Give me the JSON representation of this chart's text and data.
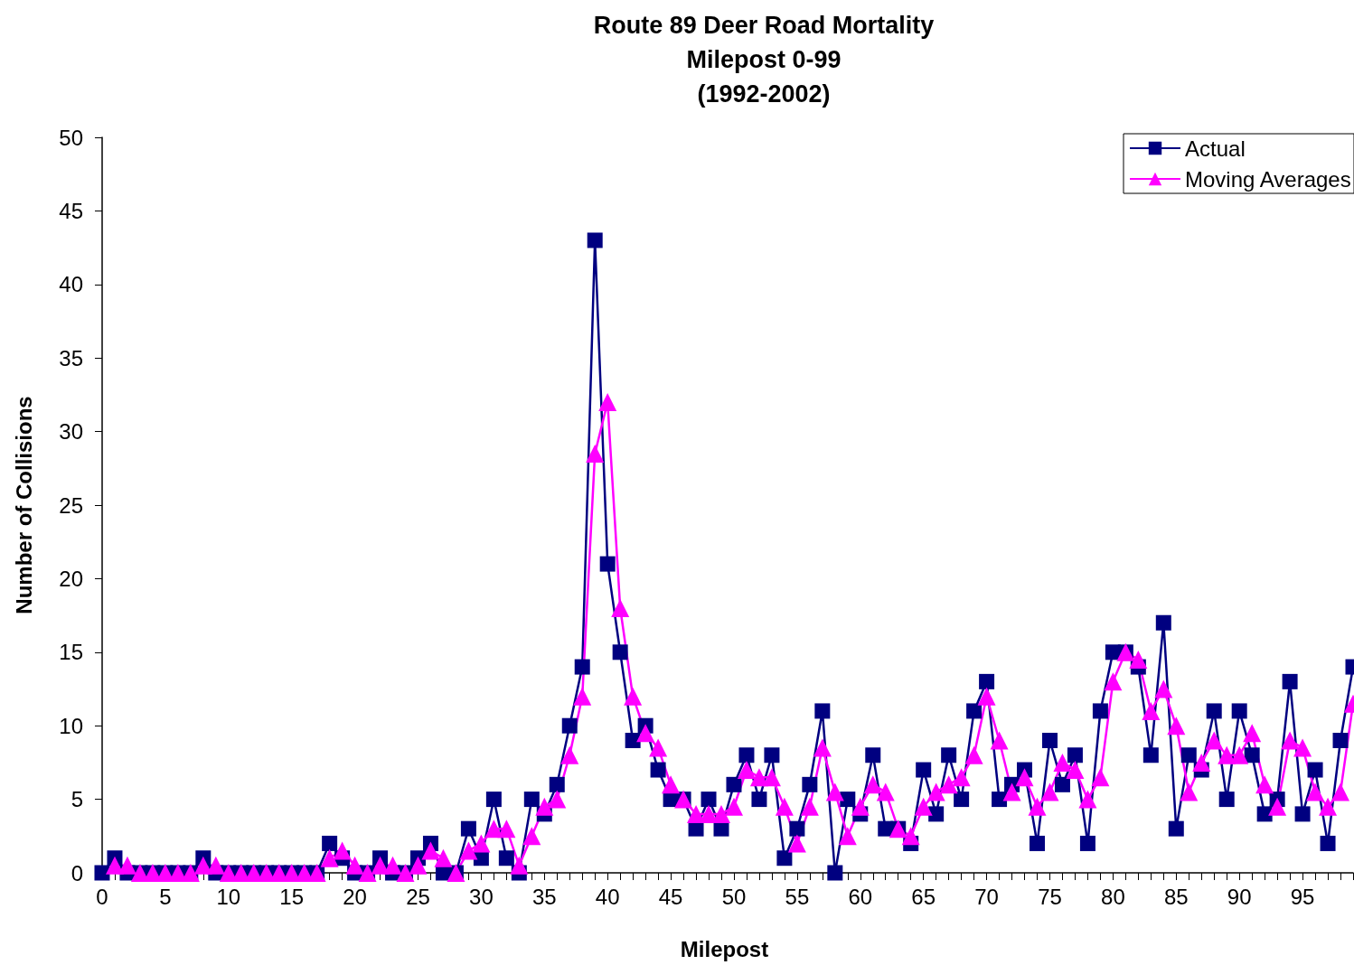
{
  "chart_data": {
    "type": "line",
    "title": "Route 89 Deer Road Mortality\nMilepost 0-99\n(1992-2002)",
    "xlabel": "Milepost",
    "ylabel": "Number of Collisions",
    "x": [
      0,
      1,
      2,
      3,
      4,
      5,
      6,
      7,
      8,
      9,
      10,
      11,
      12,
      13,
      14,
      15,
      16,
      17,
      18,
      19,
      20,
      21,
      22,
      23,
      24,
      25,
      26,
      27,
      28,
      29,
      30,
      31,
      32,
      33,
      34,
      35,
      36,
      37,
      38,
      39,
      40,
      41,
      42,
      43,
      44,
      45,
      46,
      47,
      48,
      49,
      50,
      51,
      52,
      53,
      54,
      55,
      56,
      57,
      58,
      59,
      60,
      61,
      62,
      63,
      64,
      65,
      66,
      67,
      68,
      69,
      70,
      71,
      72,
      73,
      74,
      75,
      76,
      77,
      78,
      79,
      80,
      81,
      82,
      83,
      84,
      85,
      86,
      87,
      88,
      89,
      90,
      91,
      92,
      93,
      94,
      95,
      96,
      97,
      98,
      99
    ],
    "series": [
      {
        "name": "Actual",
        "color": "#000080",
        "marker": "square",
        "values": [
          0,
          1,
          0,
          0,
          0,
          0,
          0,
          0,
          1,
          0,
          0,
          0,
          0,
          0,
          0,
          0,
          0,
          0,
          2,
          1,
          0,
          0,
          1,
          0,
          0,
          1,
          2,
          0,
          0,
          3,
          1,
          5,
          1,
          0,
          5,
          4,
          6,
          10,
          14,
          43,
          21,
          15,
          9,
          10,
          7,
          5,
          5,
          3,
          5,
          3,
          6,
          8,
          5,
          8,
          1,
          3,
          6,
          11,
          0,
          5,
          4,
          8,
          3,
          3,
          2,
          7,
          4,
          8,
          5,
          11,
          13,
          5,
          6,
          7,
          2,
          9,
          6,
          8,
          2,
          11,
          15,
          15,
          14,
          8,
          17,
          3,
          8,
          7,
          11,
          5,
          11,
          8,
          4,
          5,
          13,
          4,
          7,
          2,
          9,
          14
        ]
      },
      {
        "name": "Moving Averages",
        "color": "#ff00ff",
        "marker": "triangle",
        "x": [
          1,
          2,
          3,
          4,
          5,
          6,
          7,
          8,
          9,
          10,
          11,
          12,
          13,
          14,
          15,
          16,
          17,
          18,
          19,
          20,
          21,
          22,
          23,
          24,
          25,
          26,
          27,
          28,
          29,
          30,
          31,
          32,
          33,
          34,
          35,
          36,
          37,
          38,
          39,
          40,
          41,
          42,
          43,
          44,
          45,
          46,
          47,
          48,
          49,
          50,
          51,
          52,
          53,
          54,
          55,
          56,
          57,
          58,
          59,
          60,
          61,
          62,
          63,
          64,
          65,
          66,
          67,
          68,
          69,
          70,
          71,
          72,
          73,
          74,
          75,
          76,
          77,
          78,
          79,
          80,
          81,
          82,
          83,
          84,
          85,
          86,
          87,
          88,
          89,
          90,
          91,
          92,
          93,
          94,
          95,
          96,
          97,
          98,
          99
        ],
        "values": [
          0.5,
          0.5,
          0,
          0,
          0,
          0,
          0,
          0.5,
          0.5,
          0,
          0,
          0,
          0,
          0,
          0,
          0,
          0,
          1,
          1.5,
          0.5,
          0,
          0.5,
          0.5,
          0,
          0.5,
          1.5,
          1,
          0,
          1.5,
          2,
          3,
          3,
          0.5,
          2.5,
          4.5,
          5,
          8,
          12,
          28.5,
          32,
          18,
          12,
          9.5,
          8.5,
          6,
          5,
          4,
          4,
          4,
          4.5,
          7,
          6.5,
          6.5,
          4.5,
          2,
          4.5,
          8.5,
          5.5,
          2.5,
          4.5,
          6,
          5.5,
          3,
          2.5,
          4.5,
          5.5,
          6,
          6.5,
          8,
          12,
          9,
          5.5,
          6.5,
          4.5,
          5.5,
          7.5,
          7,
          5,
          6.5,
          13,
          15,
          14.5,
          11,
          12.5,
          10,
          5.5,
          7.5,
          9,
          8,
          8,
          9.5,
          6,
          4.5,
          9,
          8.5,
          5.5,
          4.5,
          5.5,
          11.5
        ]
      }
    ],
    "xlim": [
      -0.5,
      99
    ],
    "xticks": [
      0,
      {
        "value": 1,
        "label": null
      },
      {
        "value": 2,
        "label": null
      },
      {
        "value": 3,
        "label": null
      },
      {
        "value": 4,
        "label": null
      },
      5,
      {
        "value": 6,
        "label": null
      },
      {
        "value": 7,
        "label": null
      },
      {
        "value": 8,
        "label": null
      },
      {
        "value": 9,
        "label": null
      },
      10,
      {
        "value": 11,
        "label": null
      },
      {
        "value": 12,
        "label": null
      },
      {
        "value": 13,
        "label": null
      },
      {
        "value": 14,
        "label": null
      },
      15,
      {
        "value": 16,
        "label": null
      },
      {
        "value": 17,
        "label": null
      },
      {
        "value": 18,
        "label": null
      },
      {
        "value": 19,
        "label": null
      },
      20,
      {
        "value": 21,
        "label": null
      },
      {
        "value": 22,
        "label": null
      },
      {
        "value": 23,
        "label": null
      },
      {
        "value": 24,
        "label": null
      },
      25,
      {
        "value": 26,
        "label": null
      },
      {
        "value": 27,
        "label": null
      },
      {
        "value": 28,
        "label": null
      },
      {
        "value": 29,
        "label": null
      },
      30,
      {
        "value": 31,
        "label": null
      },
      {
        "value": 32,
        "label": null
      },
      {
        "value": 33,
        "label": null
      },
      {
        "value": 34,
        "label": null
      },
      35,
      {
        "value": 36,
        "label": null
      },
      {
        "value": 37,
        "label": null
      },
      {
        "value": 38,
        "label": null
      },
      {
        "value": 39,
        "label": null
      },
      40,
      {
        "value": 41,
        "label": null
      },
      {
        "value": 42,
        "label": null
      },
      {
        "value": 43,
        "label": null
      },
      {
        "value": 44,
        "label": null
      },
      45,
      {
        "value": 46,
        "label": null
      },
      {
        "value": 47,
        "label": null
      },
      {
        "value": 48,
        "label": null
      },
      {
        "value": 49,
        "label": null
      },
      50,
      {
        "value": 51,
        "label": null
      },
      {
        "value": 52,
        "label": null
      },
      {
        "value": 53,
        "label": null
      },
      {
        "value": 54,
        "label": null
      },
      55,
      {
        "value": 56,
        "label": null
      },
      {
        "value": 57,
        "label": null
      },
      {
        "value": 58,
        "label": null
      },
      {
        "value": 59,
        "label": null
      },
      60,
      {
        "value": 61,
        "label": null
      },
      {
        "value": 62,
        "label": null
      },
      {
        "value": 63,
        "label": null
      },
      {
        "value": 64,
        "label": null
      },
      65,
      {
        "value": 66,
        "label": null
      },
      {
        "value": 67,
        "label": null
      },
      {
        "value": 68,
        "label": null
      },
      {
        "value": 69,
        "label": null
      },
      70,
      {
        "value": 71,
        "label": null
      },
      {
        "value": 72,
        "label": null
      },
      {
        "value": 73,
        "label": null
      },
      {
        "value": 74,
        "label": null
      },
      75,
      {
        "value": 76,
        "label": null
      },
      {
        "value": 77,
        "label": null
      },
      {
        "value": 78,
        "label": null
      },
      {
        "value": 79,
        "label": null
      },
      80,
      {
        "value": 81,
        "label": null
      },
      {
        "value": 82,
        "label": null
      },
      {
        "value": 83,
        "label": null
      },
      {
        "value": 84,
        "label": null
      },
      85,
      {
        "value": 86,
        "label": null
      },
      {
        "value": 87,
        "label": null
      },
      {
        "value": 88,
        "label": null
      },
      {
        "value": 89,
        "label": null
      },
      90,
      {
        "value": 91,
        "label": null
      },
      {
        "value": 92,
        "label": null
      },
      {
        "value": 93,
        "label": null
      },
      {
        "value": 94,
        "label": null
      },
      95,
      {
        "value": 96,
        "label": null
      },
      {
        "value": 97,
        "label": null
      },
      {
        "value": 98,
        "label": null
      },
      {
        "value": 99,
        "label": null
      }
    ],
    "ylim": [
      0,
      50
    ],
    "yticks": [
      0,
      5,
      10,
      15,
      20,
      25,
      30,
      35,
      40,
      45,
      50
    ],
    "grid": false,
    "legend": "top right",
    "line_style": "solid"
  }
}
